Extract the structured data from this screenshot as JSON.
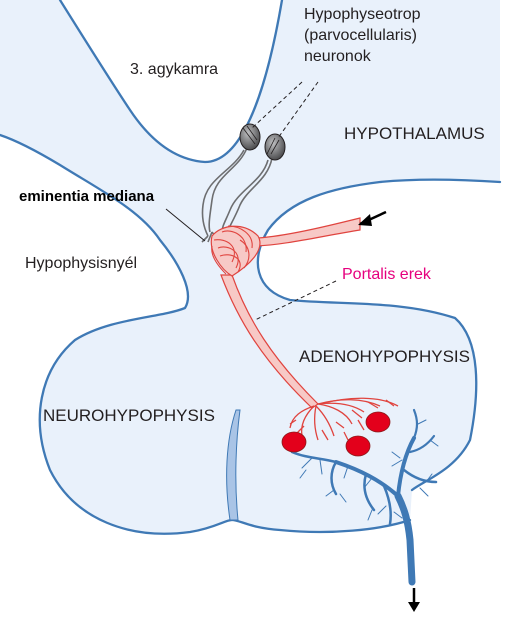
{
  "labels": {
    "hypophyseotrop_line1": "Hypophyseotrop",
    "hypophyseotrop_line2": "(parvocellularis)",
    "hypophyseotrop_line3": "neuronok",
    "third_ventricle": "3. agykamra",
    "hypothalamus": "HYPOTHALAMUS",
    "eminentia_mediana": "eminentia mediana",
    "hypophysisnyel": "Hypophysisnyél",
    "portalis_erek": "Portalis erek",
    "adenohypophysis": "ADENOHYPOPHYSIS",
    "neurohypophysis": "NEUROHYPOPHYSIS"
  },
  "colors": {
    "tissue_fill": "#e9f1fb",
    "outline": "#3f79b5",
    "vessel_fill": "#f7c9c6",
    "vessel_line": "#e0443f",
    "cell_red": "#e3001b",
    "vein_blue": "#3f79b5",
    "neuron_gray": "#6d6e70",
    "label_pink": "#e6007e"
  }
}
